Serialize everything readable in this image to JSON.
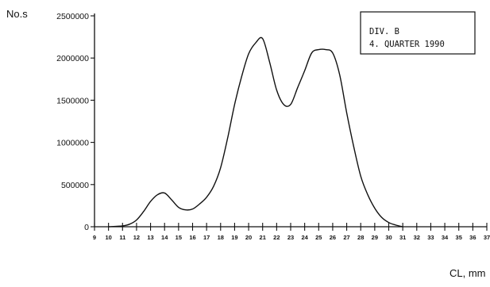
{
  "chart_data": {
    "type": "line",
    "title": "",
    "ylabel": "No.s",
    "xlabel": "CL, mm",
    "xlim": [
      9,
      37
    ],
    "ylim": [
      0,
      2500000
    ],
    "grid": false,
    "y_ticks": [
      0,
      500000,
      1000000,
      1500000,
      2000000,
      2500000
    ],
    "y_tick_labels": [
      "0",
      "500000",
      "1000000",
      "1500000",
      "2000000",
      "2500000"
    ],
    "x_ticks": [
      9,
      10,
      11,
      12,
      13,
      14,
      15,
      16,
      17,
      18,
      19,
      20,
      21,
      22,
      23,
      24,
      25,
      26,
      27,
      28,
      29,
      30,
      31,
      32,
      33,
      34,
      35,
      36,
      37
    ],
    "x_tick_labels": [
      "9",
      "10",
      "11",
      "12",
      "13",
      "14",
      "15",
      "16",
      "17",
      "18",
      "19",
      "20",
      "21",
      "22",
      "23",
      "24",
      "25",
      "26",
      "27",
      "28",
      "29",
      "30",
      "31",
      "32",
      "33",
      "34",
      "35",
      "36",
      "37"
    ],
    "annotation": {
      "line1": "DIV. B",
      "line2": "4. QUARTER 1990"
    },
    "legend_position": "top-right",
    "series": [
      {
        "x": [
          10,
          11,
          11.5,
          12,
          12.5,
          13,
          13.5,
          14,
          14.5,
          15,
          15.5,
          16,
          16.5,
          17,
          17.5,
          18,
          18.5,
          19,
          19.5,
          20,
          20.5,
          21,
          21.5,
          22,
          22.5,
          23,
          23.5,
          24,
          24.5,
          25,
          25.5,
          26,
          26.5,
          27,
          27.5,
          28,
          28.5,
          29,
          29.5,
          30,
          30.5,
          31
        ],
        "values": [
          0,
          10000,
          30000,
          80000,
          180000,
          300000,
          380000,
          400000,
          320000,
          230000,
          200000,
          210000,
          270000,
          350000,
          480000,
          700000,
          1050000,
          1450000,
          1780000,
          2050000,
          2180000,
          2230000,
          1950000,
          1620000,
          1450000,
          1450000,
          1650000,
          1850000,
          2060000,
          2100000,
          2100000,
          2060000,
          1800000,
          1350000,
          950000,
          600000,
          380000,
          220000,
          110000,
          50000,
          20000,
          0
        ]
      }
    ]
  }
}
